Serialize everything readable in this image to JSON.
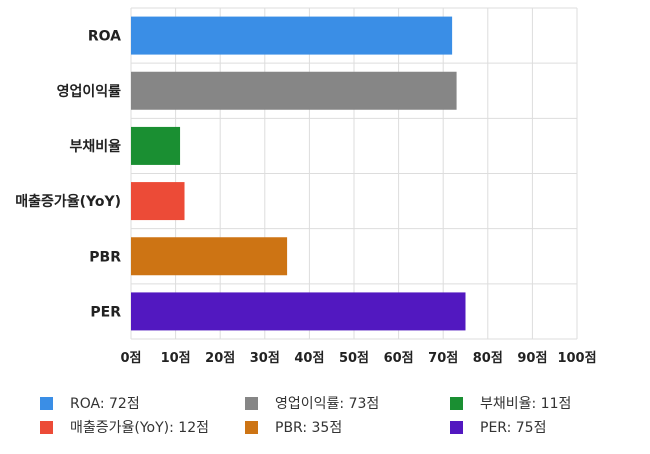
{
  "chart_data": {
    "type": "bar",
    "orientation": "horizontal",
    "categories": [
      "ROA",
      "영업이익률",
      "부채비율",
      "매출증가율(YoY)",
      "PBR",
      "PER"
    ],
    "values": [
      72,
      73,
      11,
      12,
      35,
      75
    ],
    "colors": [
      "#3a8ee6",
      "#868686",
      "#1a8f32",
      "#ec4b37",
      "#cd7414",
      "#5218c0"
    ],
    "xlim": [
      0,
      100
    ],
    "x_ticks": [
      0,
      10,
      20,
      30,
      40,
      50,
      60,
      70,
      80,
      90,
      100
    ],
    "tick_suffix": "점",
    "grid": true,
    "legend_position": "bottom",
    "legend": [
      "ROA: 72점",
      "영업이익률: 73점",
      "부채비율: 11점",
      "매출증가율(YoY): 12점",
      "PBR: 35점",
      "PER: 75점"
    ]
  }
}
